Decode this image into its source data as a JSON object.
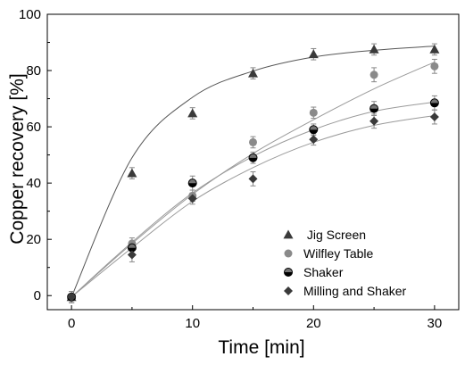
{
  "chart_data": {
    "type": "scatter",
    "xlabel": "Time [min]",
    "ylabel": "Copper recovery [%]",
    "xlim": [
      -2,
      32
    ],
    "ylim": [
      -5,
      100
    ],
    "xticks": [
      0,
      10,
      20,
      30
    ],
    "yticks": [
      0,
      20,
      40,
      60,
      80,
      100
    ],
    "grid": false,
    "legend_position": "bottom-right",
    "series": [
      {
        "name": " Jig Screen",
        "marker": "triangle",
        "color": "#3a3a3a",
        "x": [
          0,
          5,
          10,
          15,
          20,
          25,
          30
        ],
        "y": [
          -0.5,
          43.5,
          64.8,
          79,
          85.8,
          87.5,
          87.5
        ],
        "err": [
          2,
          2,
          2,
          2,
          2,
          2,
          2
        ],
        "fit": [
          -0.5,
          49.0,
          70.5,
          79.8,
          84.8,
          87.2,
          88.7
        ]
      },
      {
        "name": "Wilfley Table",
        "marker": "circle",
        "color": "#8a8a8a",
        "x": [
          0,
          5,
          10,
          15,
          20,
          25,
          30
        ],
        "y": [
          -0.5,
          18.5,
          35.5,
          54.5,
          65,
          78.5,
          81.5
        ],
        "err": [
          2,
          2,
          2,
          2,
          2,
          2.5,
          2.5
        ],
        "fit": [
          -0.5,
          18.5,
          36.0,
          50.5,
          62.5,
          73.5,
          83.0
        ]
      },
      {
        "name": "Shaker",
        "marker": "half-circle",
        "color": "#000000",
        "x": [
          0,
          5,
          10,
          15,
          20,
          25,
          30
        ],
        "y": [
          -0.5,
          17,
          40,
          49,
          59,
          66.5,
          68.5
        ],
        "err": [
          2,
          2,
          2.5,
          2,
          2,
          2.5,
          2.5
        ],
        "fit": [
          -0.5,
          19.0,
          36.5,
          49.5,
          59.0,
          65.5,
          68.8
        ]
      },
      {
        "name": "Milling and Shaker",
        "marker": "diamond",
        "color": "#3a3a3a",
        "x": [
          0,
          5,
          10,
          15,
          20,
          25,
          30
        ],
        "y": [
          -0.5,
          14.5,
          34.5,
          41.5,
          55.5,
          62,
          63.5
        ],
        "err": [
          2,
          2.5,
          2,
          2.5,
          2,
          2.5,
          2.5
        ],
        "fit": [
          -0.5,
          17.0,
          33.5,
          45.5,
          54.5,
          60.5,
          64.0
        ]
      }
    ]
  }
}
